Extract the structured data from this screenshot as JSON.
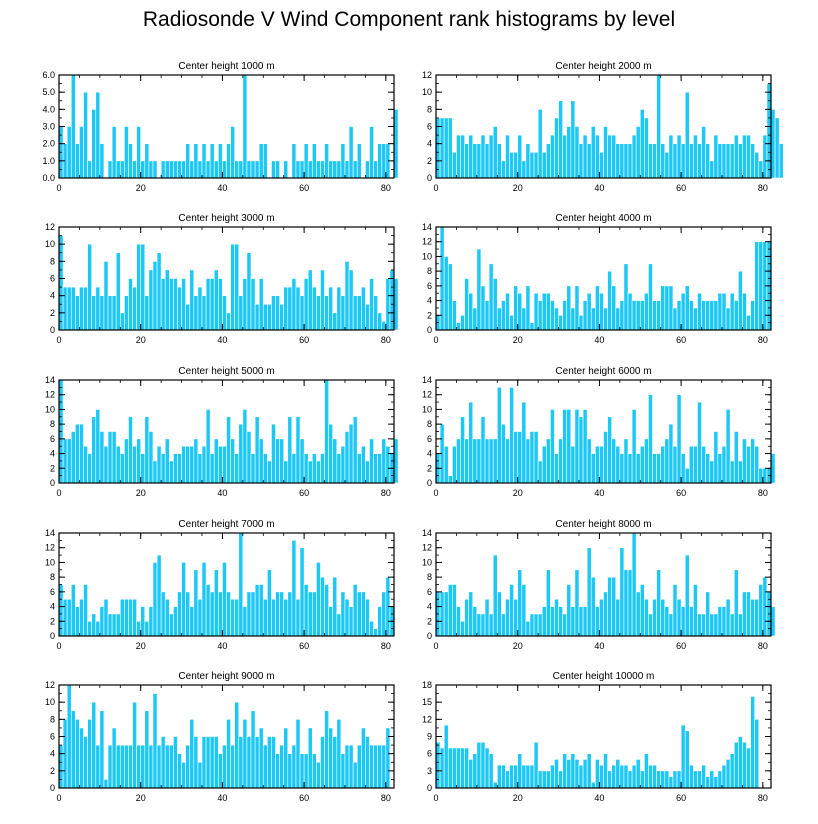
{
  "figure": {
    "title": "Radiosonde V Wind Component rank histograms by level",
    "bar_color": "#1ec8f5"
  },
  "chart_data": [
    {
      "type": "bar",
      "title": "Center height 1000 m",
      "xlim": [
        0,
        82
      ],
      "ylim": [
        0,
        6
      ],
      "xticks": [
        0,
        20,
        40,
        60,
        80
      ],
      "yticks": [
        0,
        1,
        2,
        3,
        4,
        5,
        6
      ],
      "ytick_labels": [
        "0.0",
        "1.0",
        "2.0",
        "3.0",
        "4.0",
        "5.0",
        "6.0"
      ],
      "values": [
        3,
        2,
        3,
        6,
        2,
        3,
        5,
        1,
        4,
        5,
        2,
        0,
        1,
        3,
        1,
        1,
        3,
        2,
        1,
        3,
        1,
        2,
        1,
        1,
        0,
        1,
        1,
        1,
        1,
        1,
        1,
        2,
        1,
        2,
        1,
        2,
        1,
        2,
        1,
        2,
        1,
        2,
        3,
        1,
        1,
        6,
        1,
        1,
        1,
        2,
        2,
        0,
        1,
        1,
        0,
        1,
        0,
        2,
        1,
        1,
        2,
        1,
        2,
        1,
        1,
        2,
        1,
        1,
        1,
        2,
        1,
        3,
        1,
        2,
        0,
        1,
        3,
        1,
        2,
        2,
        2,
        0,
        4
      ]
    },
    {
      "type": "bar",
      "title": "Center height 2000 m",
      "xlim": [
        0,
        82
      ],
      "ylim": [
        0,
        12
      ],
      "xticks": [
        0,
        20,
        40,
        60,
        80
      ],
      "yticks": [
        0,
        2,
        4,
        6,
        8,
        10,
        12
      ],
      "ytick_labels": [
        "0",
        "2",
        "4",
        "6",
        "8",
        "10",
        "12"
      ],
      "values": [
        7,
        7,
        7,
        7,
        3,
        5,
        5,
        4,
        5,
        4,
        4,
        5,
        4,
        5,
        6,
        4,
        2,
        5,
        3,
        3,
        5,
        2,
        4,
        3,
        3,
        8,
        3,
        4,
        5,
        7,
        9,
        5,
        6,
        9,
        6,
        4,
        5,
        4,
        6,
        5,
        3,
        6,
        5,
        5,
        4,
        4,
        4,
        4,
        5,
        6,
        8,
        7,
        4,
        4,
        12,
        4,
        3,
        5,
        4,
        5,
        4,
        10,
        4,
        5,
        4,
        6,
        4,
        2,
        5,
        4,
        4,
        4,
        4,
        5,
        4,
        5,
        5,
        4,
        3,
        2,
        5,
        11,
        8,
        7,
        4
      ]
    },
    {
      "type": "bar",
      "title": "Center height 3000 m",
      "xlim": [
        0,
        82
      ],
      "ylim": [
        0,
        12
      ],
      "xticks": [
        0,
        20,
        40,
        60,
        80
      ],
      "yticks": [
        0,
        2,
        4,
        6,
        8,
        10,
        12
      ],
      "ytick_labels": [
        "0",
        "2",
        "4",
        "6",
        "8",
        "10",
        "12"
      ],
      "values": [
        11,
        5,
        5,
        5,
        4,
        5,
        5,
        10,
        4,
        5,
        4,
        8,
        4,
        4,
        9,
        2,
        4,
        6,
        5,
        10,
        10,
        4,
        7,
        8,
        9,
        6,
        7,
        6,
        6,
        5,
        6,
        3,
        7,
        4,
        5,
        4,
        6,
        6,
        7,
        6,
        4,
        2,
        10,
        10,
        4,
        6,
        9,
        6,
        3,
        6,
        3,
        3,
        4,
        4,
        3,
        5,
        5,
        6,
        5,
        4,
        6,
        7,
        5,
        4,
        7,
        4,
        5,
        2,
        5,
        4,
        8,
        7,
        4,
        4,
        5,
        3,
        6,
        4,
        2,
        1,
        6,
        7,
        6
      ]
    },
    {
      "type": "bar",
      "title": "Center height 4000 m",
      "xlim": [
        0,
        82
      ],
      "ylim": [
        0,
        14
      ],
      "xticks": [
        0,
        20,
        40,
        60,
        80
      ],
      "yticks": [
        0,
        2,
        4,
        6,
        8,
        10,
        12,
        14
      ],
      "ytick_labels": [
        "0",
        "2",
        "4",
        "6",
        "8",
        "10",
        "12",
        "14"
      ],
      "values": [
        2,
        14,
        10,
        9,
        4,
        1,
        2,
        7,
        5,
        3,
        11,
        6,
        4,
        9,
        7,
        3,
        4,
        5,
        2,
        6,
        5,
        3,
        6,
        1,
        5,
        4,
        5,
        5,
        4,
        3,
        2,
        4,
        6,
        3,
        6,
        2,
        4,
        5,
        3,
        6,
        5,
        3,
        8,
        6,
        3,
        4,
        9,
        5,
        4,
        4,
        4,
        5,
        9,
        4,
        4,
        6,
        6,
        6,
        3,
        4,
        5,
        6,
        4,
        3,
        5,
        4,
        4,
        4,
        4,
        5,
        5,
        3,
        5,
        4,
        8,
        5,
        2,
        4,
        12,
        12,
        12,
        12
      ]
    },
    {
      "type": "bar",
      "title": "Center height 5000 m",
      "xlim": [
        0,
        82
      ],
      "ylim": [
        0,
        14
      ],
      "xticks": [
        0,
        20,
        40,
        60,
        80
      ],
      "yticks": [
        0,
        2,
        4,
        6,
        8,
        10,
        12,
        14
      ],
      "ytick_labels": [
        "0",
        "2",
        "4",
        "6",
        "8",
        "10",
        "12",
        "14"
      ],
      "values": [
        14,
        6,
        6,
        7,
        8,
        8,
        5,
        4,
        9,
        10,
        7,
        5,
        7,
        7,
        5,
        4,
        6,
        9,
        5,
        6,
        4,
        9,
        7,
        3,
        5,
        4,
        6,
        3,
        4,
        4,
        5,
        5,
        5,
        6,
        4,
        5,
        10,
        4,
        6,
        5,
        5,
        9,
        6,
        4,
        8,
        10,
        7,
        4,
        9,
        6,
        4,
        3,
        8,
        6,
        6,
        3,
        9,
        4,
        9,
        6,
        4,
        3,
        4,
        3,
        4,
        14,
        8,
        6,
        4,
        5,
        7,
        8,
        9,
        4,
        5,
        3,
        6,
        4,
        4,
        6,
        5,
        4,
        6
      ]
    },
    {
      "type": "bar",
      "title": "Center height 6000 m",
      "xlim": [
        0,
        82
      ],
      "ylim": [
        0,
        14
      ],
      "xticks": [
        0,
        20,
        40,
        60,
        80
      ],
      "yticks": [
        0,
        2,
        4,
        6,
        8,
        10,
        12,
        14
      ],
      "ytick_labels": [
        "0",
        "2",
        "4",
        "6",
        "8",
        "10",
        "12",
        "14"
      ],
      "values": [
        4,
        8,
        5,
        1,
        5,
        6,
        9,
        6,
        11,
        6,
        6,
        9,
        6,
        6,
        6,
        13,
        8,
        6,
        13,
        7,
        7,
        11,
        6,
        7,
        7,
        3,
        5,
        6,
        10,
        4,
        6,
        10,
        10,
        5,
        10,
        9,
        10,
        6,
        4,
        5,
        5,
        7,
        9,
        6,
        5,
        4,
        6,
        4,
        10,
        4,
        5,
        6,
        12,
        4,
        4,
        5,
        6,
        8,
        5,
        12,
        4,
        2,
        5,
        5,
        11,
        5,
        4,
        3,
        7,
        4,
        5,
        10,
        3,
        7,
        3,
        6,
        5,
        6,
        5,
        2,
        2,
        2,
        4
      ]
    },
    {
      "type": "bar",
      "title": "Center height 7000 m",
      "xlim": [
        0,
        82
      ],
      "ylim": [
        0,
        14
      ],
      "xticks": [
        0,
        20,
        40,
        60,
        80
      ],
      "yticks": [
        0,
        2,
        4,
        6,
        8,
        10,
        12,
        14
      ],
      "ytick_labels": [
        "0",
        "2",
        "4",
        "6",
        "8",
        "10",
        "12",
        "14"
      ],
      "values": [
        7,
        5,
        5,
        7,
        4,
        5,
        7,
        2,
        3,
        2,
        4,
        5,
        3,
        3,
        3,
        5,
        5,
        5,
        5,
        2,
        4,
        2,
        4,
        10,
        11,
        6,
        5,
        3,
        4,
        6,
        10,
        6,
        4,
        9,
        5,
        10,
        7,
        6,
        9,
        6,
        10,
        6,
        5,
        5,
        14,
        4,
        6,
        6,
        7,
        7,
        5,
        9,
        5,
        6,
        6,
        5,
        6,
        13,
        5,
        12,
        7,
        6,
        6,
        10,
        8,
        7,
        4,
        8,
        3,
        6,
        5,
        4,
        7,
        6,
        6,
        5,
        2,
        1,
        4,
        6,
        8,
        4
      ]
    },
    {
      "type": "bar",
      "title": "Center height 8000 m",
      "xlim": [
        0,
        82
      ],
      "ylim": [
        0,
        14
      ],
      "xticks": [
        0,
        20,
        40,
        60,
        80
      ],
      "yticks": [
        0,
        2,
        4,
        6,
        8,
        10,
        12,
        14
      ],
      "ytick_labels": [
        "0",
        "2",
        "4",
        "6",
        "8",
        "10",
        "12",
        "14"
      ],
      "values": [
        6,
        6,
        6,
        7,
        7,
        4,
        2,
        5,
        6,
        4,
        3,
        3,
        5,
        3,
        11,
        6,
        3,
        5,
        7,
        5,
        9,
        7,
        2,
        3,
        3,
        3,
        4,
        9,
        4,
        5,
        4,
        3,
        7,
        4,
        9,
        4,
        4,
        12,
        8,
        4,
        5,
        6,
        8,
        8,
        5,
        12,
        9,
        9,
        14,
        6,
        7,
        5,
        3,
        5,
        9,
        5,
        4,
        3,
        7,
        5,
        4,
        11,
        4,
        7,
        3,
        3,
        6,
        3,
        3,
        4,
        4,
        5,
        3,
        9,
        3,
        6,
        6,
        5,
        5,
        7,
        8,
        6,
        4
      ]
    },
    {
      "type": "bar",
      "title": "Center height 9000 m",
      "xlim": [
        0,
        82
      ],
      "ylim": [
        0,
        12
      ],
      "xticks": [
        0,
        20,
        40,
        60,
        80
      ],
      "yticks": [
        0,
        2,
        4,
        6,
        8,
        10,
        12
      ],
      "ytick_labels": [
        "0",
        "2",
        "4",
        "6",
        "8",
        "10",
        "12"
      ],
      "values": [
        5,
        8,
        12,
        9,
        8,
        7,
        6,
        8,
        10,
        5,
        9,
        1,
        5,
        7,
        5,
        5,
        5,
        5,
        10,
        5,
        5,
        9,
        5,
        11,
        5,
        6,
        5,
        5,
        6,
        4,
        3,
        5,
        8,
        6,
        3,
        6,
        6,
        6,
        6,
        4,
        5,
        8,
        5,
        10,
        6,
        8,
        6,
        9,
        6,
        7,
        5,
        6,
        6,
        4,
        5,
        7,
        4,
        5,
        8,
        4,
        4,
        7,
        4,
        3,
        6,
        9,
        7,
        6,
        8,
        4,
        5,
        5,
        3,
        5,
        7,
        6,
        5,
        5,
        5,
        5,
        7
      ]
    },
    {
      "type": "bar",
      "title": "Center height 10000 m",
      "xlim": [
        0,
        82
      ],
      "ylim": [
        0,
        18
      ],
      "xticks": [
        0,
        20,
        40,
        60,
        80
      ],
      "yticks": [
        0,
        3,
        6,
        9,
        12,
        15,
        18
      ],
      "ytick_labels": [
        "0",
        "3",
        "6",
        "9",
        "12",
        "15",
        "18"
      ],
      "values": [
        8,
        7,
        11,
        7,
        7,
        7,
        7,
        7,
        5,
        6,
        8,
        8,
        7,
        6,
        1,
        4,
        4,
        3,
        4,
        4,
        6,
        4,
        4,
        4,
        8,
        3,
        3,
        3,
        4,
        5,
        3,
        6,
        5,
        6,
        5,
        4,
        5,
        6,
        1,
        5,
        4,
        6,
        3,
        4,
        5,
        4,
        4,
        3,
        4,
        5,
        3,
        6,
        4,
        4,
        3,
        3,
        3,
        2,
        3,
        3,
        11,
        10,
        4,
        3,
        3,
        4,
        2,
        3,
        2,
        3,
        4,
        5,
        6,
        8,
        9,
        8,
        7,
        16,
        12
      ]
    }
  ]
}
